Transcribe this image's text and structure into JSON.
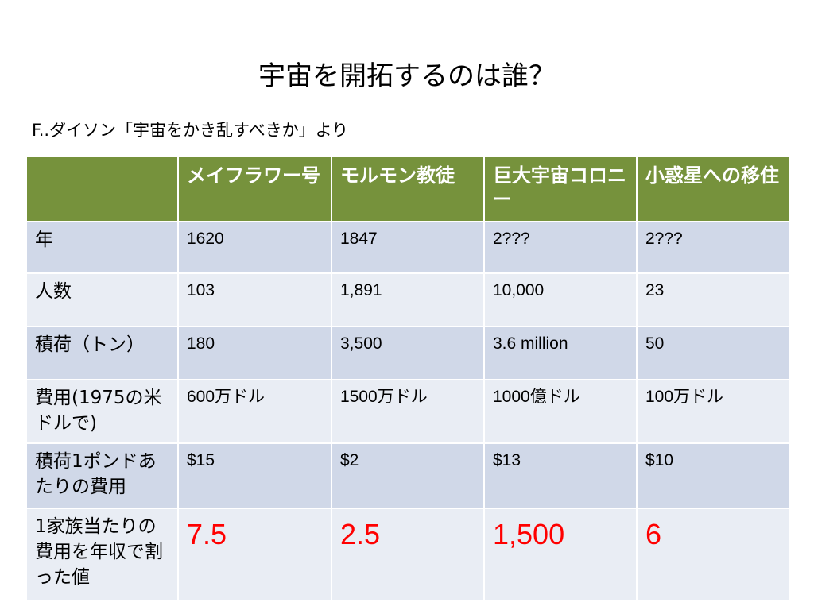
{
  "title": "宇宙を開拓するのは誰？",
  "subtitle": "F..ダイソン「宇宙をかき乱すべきか」より",
  "colors": {
    "header_bg": "#76923c",
    "row_dark": "#d0d8e8",
    "row_light": "#e9edf4",
    "highlight": "#ff0000"
  },
  "table": {
    "corner": "",
    "columns": [
      "メイフラワー号",
      "モルモン教徒",
      "巨大宇宙コロニー",
      "小惑星への移住"
    ],
    "rows": [
      {
        "label": "年",
        "cells": [
          "1620",
          "1847",
          "2???",
          "2???"
        ]
      },
      {
        "label": "人数",
        "cells": [
          "103",
          "1,891",
          "10,000",
          "23"
        ]
      },
      {
        "label": "積荷（トン）",
        "cells": [
          "180",
          "3,500",
          "3.6 million",
          "50"
        ]
      },
      {
        "label": "費用(1975の米ドルで)",
        "cells": [
          "600万ドル",
          "1500万ドル",
          "1000億ドル",
          "100万ドル"
        ]
      },
      {
        "label": "積荷1ポンドあたりの費用",
        "cells": [
          "$15",
          "$2",
          "$13",
          "$10"
        ]
      },
      {
        "label": "1家族当たりの費用を年収で割った値",
        "cells": [
          "7.5",
          "2.5",
          "1,500",
          "6"
        ]
      }
    ]
  }
}
